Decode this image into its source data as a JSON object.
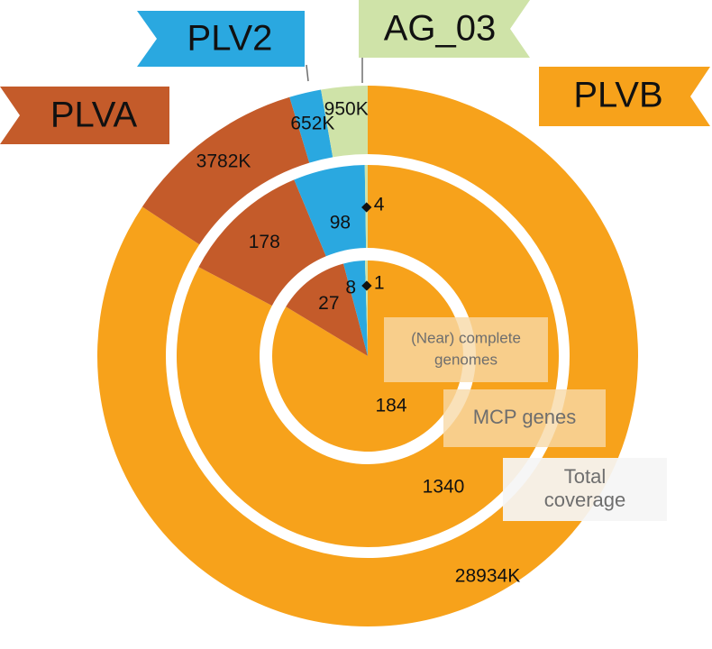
{
  "colors": {
    "background": "#ffffff",
    "ring_gap": "#ffffff",
    "label_text": "#111111",
    "caption_text": "#6e6e6e",
    "caption_box": "#f7d9a8"
  },
  "chart_data": {
    "type": "pie",
    "subtype": "nested-donut",
    "title": "",
    "groups": [
      {
        "name": "PLVB",
        "color": "#f7a21b"
      },
      {
        "name": "PLVA",
        "color": "#c45b2a"
      },
      {
        "name": "PLV2",
        "color": "#2aa8e0"
      },
      {
        "name": "AG_03",
        "color": "#cfe3a8"
      }
    ],
    "rings": [
      {
        "name": "Total coverage",
        "level": "outer",
        "values": [
          {
            "group": "PLVB",
            "value": 28934,
            "label": "28934K"
          },
          {
            "group": "PLVA",
            "value": 3782,
            "label": "3782K"
          },
          {
            "group": "PLV2",
            "value": 652,
            "label": "652K"
          },
          {
            "group": "AG_03",
            "value": 950,
            "label": "950K"
          }
        ]
      },
      {
        "name": "MCP genes",
        "level": "middle",
        "values": [
          {
            "group": "PLVB",
            "value": 1340,
            "label": "1340"
          },
          {
            "group": "PLVA",
            "value": 178,
            "label": "178"
          },
          {
            "group": "PLV2",
            "value": 98,
            "label": "98"
          },
          {
            "group": "AG_03",
            "value": 4,
            "label": "4"
          }
        ]
      },
      {
        "name": "(Near) complete genomes",
        "level": "inner",
        "values": [
          {
            "group": "PLVB",
            "value": 184,
            "label": "184"
          },
          {
            "group": "PLVA",
            "value": 27,
            "label": "27"
          },
          {
            "group": "PLV2",
            "value": 8,
            "label": "8"
          },
          {
            "group": "AG_03",
            "value": 1,
            "label": "1"
          }
        ]
      }
    ],
    "ring_captions": [
      {
        "lines": [
          "(Near) complete",
          "genomes"
        ]
      },
      {
        "lines": [
          "MCP genes"
        ]
      },
      {
        "lines": [
          "Total",
          "coverage"
        ]
      }
    ],
    "legend": "flags-around-chart"
  }
}
